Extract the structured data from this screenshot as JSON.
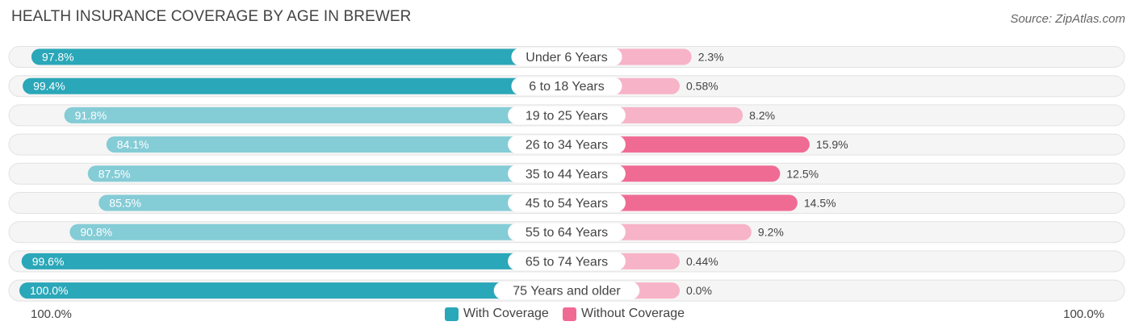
{
  "chart_data": {
    "type": "bar",
    "title": "HEALTH INSURANCE COVERAGE BY AGE IN BREWER",
    "source": "Source: ZipAtlas.com",
    "categories": [
      "Under 6 Years",
      "6 to 18 Years",
      "19 to 25 Years",
      "26 to 34 Years",
      "35 to 44 Years",
      "45 to 54 Years",
      "55 to 64 Years",
      "65 to 74 Years",
      "75 Years and older"
    ],
    "series": [
      {
        "name": "With Coverage",
        "values": [
          97.8,
          99.4,
          91.8,
          84.1,
          87.5,
          85.5,
          90.8,
          99.6,
          100.0
        ],
        "labels": [
          "97.8%",
          "99.4%",
          "91.8%",
          "84.1%",
          "87.5%",
          "85.5%",
          "90.8%",
          "99.6%",
          "100.0%"
        ]
      },
      {
        "name": "Without Coverage",
        "values": [
          2.3,
          0.58,
          8.2,
          15.9,
          12.5,
          14.5,
          9.2,
          0.44,
          0.0
        ],
        "labels": [
          "2.3%",
          "0.58%",
          "8.2%",
          "15.9%",
          "12.5%",
          "14.5%",
          "9.2%",
          "0.44%",
          "0.0%"
        ]
      }
    ],
    "axis": {
      "left_label": "100.0%",
      "right_label": "100.0%",
      "range": [
        0,
        100
      ]
    },
    "legend": [
      {
        "label": "With Coverage",
        "color": "#2aa7b8"
      },
      {
        "label": "Without Coverage",
        "color": "#f06b94"
      }
    ]
  },
  "colors": {
    "with_strong": "#2aa7b8",
    "with_light": "#84ccd6",
    "without_strong": "#f06b94",
    "without_light": "#f7b3c7",
    "row_bg": "#eeeeee"
  }
}
